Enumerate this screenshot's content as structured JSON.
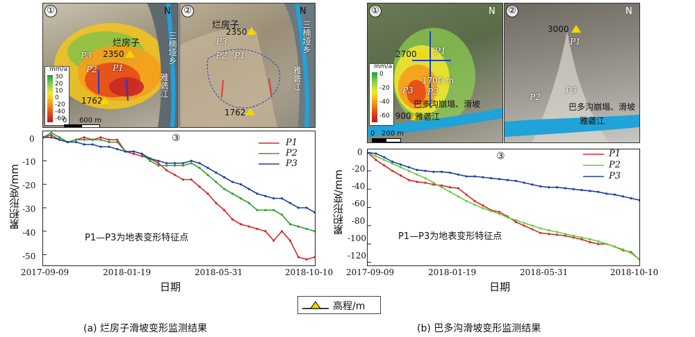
{
  "left": {
    "panel1": {
      "num": "①",
      "labels": {
        "name": "烂房子",
        "elev": "2350",
        "elev_low": "1762",
        "p1": "P1",
        "p2": "P2",
        "p3": "P3",
        "n": "N",
        "river": "雅砻江",
        "town": "三楠垭乡"
      },
      "colorbar": {
        "unit": "mm/a",
        "ticks": [
          "30",
          "20",
          "10",
          "0",
          "-20",
          "-40",
          "-60"
        ]
      },
      "scale": {
        "zero": "0",
        "len": "600 m"
      }
    },
    "panel2": {
      "num": "②",
      "labels": {
        "name": "烂房子",
        "elev": "2350",
        "elev_low": "1762",
        "p1": "P1",
        "p2": "P2",
        "p3": "P3",
        "n": "N",
        "river": "雅砻江",
        "town": "三楠垭乡"
      }
    },
    "chart_num": "③",
    "caption": "(a) 烂房子滑坡变形监测结果"
  },
  "right": {
    "panel1": {
      "num": "①",
      "labels": {
        "elev_top": "2700",
        "elev_mid": "1700 m",
        "elev_low": "1900",
        "p1": "P1",
        "p2": "P2",
        "p3": "P3",
        "n": "N",
        "river": "雅砻江",
        "collapse": "巴多沟崩塌、滑坡"
      },
      "colorbar": {
        "unit": "mm/a",
        "ticks": [
          "0",
          "-20",
          "-40",
          "-60"
        ]
      },
      "scale": {
        "zero": "0",
        "len": "200 m"
      }
    },
    "panel2": {
      "num": "②",
      "labels": {
        "elev": "3000",
        "p1": "P1",
        "p2": "P2",
        "p3": "P3",
        "n": "N",
        "river": "雅砻江",
        "collapse": "巴多沟崩塌、滑坡"
      }
    },
    "chart_num": "③",
    "caption": "(b) 巴多沟滑坡变形监测结果"
  },
  "legend_elev": "高程/m",
  "chart_data": [
    {
      "type": "line",
      "xlabel": "日期",
      "ylabel": "累积形变/mm",
      "xticks": [
        "2017-09-09",
        "2018-01-19",
        "2018-05-31",
        "2018-10-10"
      ],
      "yticks": [
        "0",
        "-10",
        "-20",
        "-30",
        "-40",
        "-50"
      ],
      "ylim": [
        -54,
        2
      ],
      "annotation": "P1—P3为地表变形特征点",
      "x": [
        0,
        12,
        24,
        36,
        48,
        60,
        72,
        84,
        96,
        108,
        120,
        132,
        144,
        156,
        168,
        180,
        192,
        204,
        216,
        228,
        240,
        252,
        264,
        276,
        288,
        300,
        312,
        324,
        336,
        348,
        360,
        372,
        384,
        396
      ],
      "x_dates": [
        "2017-09-09",
        "2017-09-21",
        "2017-10-03",
        "2017-10-15",
        "2017-10-27",
        "2017-11-08",
        "2017-11-20",
        "2017-12-02",
        "2017-12-14",
        "2017-12-26",
        "2018-01-07",
        "2018-01-19",
        "2018-01-31",
        "2018-02-12",
        "2018-02-24",
        "2018-03-08",
        "2018-03-20",
        "2018-04-01",
        "2018-04-13",
        "2018-04-25",
        "2018-05-07",
        "2018-05-19",
        "2018-05-31",
        "2018-06-12",
        "2018-06-24",
        "2018-07-06",
        "2018-07-18",
        "2018-07-30",
        "2018-08-11",
        "2018-08-23",
        "2018-09-04",
        "2018-09-16",
        "2018-09-28",
        "2018-10-10"
      ],
      "series": [
        {
          "name": "P1",
          "color": "#d62728",
          "values": [
            0,
            1,
            -1,
            -2,
            -1,
            0,
            -1,
            0,
            -1,
            -1,
            -6,
            -7,
            -8,
            -9,
            -11,
            -14,
            -16,
            -18,
            -18,
            -21,
            -24,
            -28,
            -31,
            -35,
            -37,
            -38,
            -39,
            -40,
            -44,
            -40,
            -44,
            -51,
            -52,
            -51
          ]
        },
        {
          "name": "P2",
          "color": "#2ca02c",
          "values": [
            0,
            2,
            0,
            -2,
            -1,
            -1,
            -1,
            -1,
            -2,
            -2,
            -6,
            -6,
            -7,
            -10,
            -12,
            -12,
            -12,
            -12,
            -11,
            -13,
            -16,
            -19,
            -22,
            -24,
            -26,
            -28,
            -31,
            -31,
            -31,
            -33,
            -37,
            -38,
            -39,
            -40
          ]
        },
        {
          "name": "P3",
          "color": "#1f3fa0",
          "values": [
            0,
            0,
            -1,
            -2,
            -2,
            -3,
            -3,
            -4,
            -4,
            -5,
            -6,
            -6,
            -7,
            -9,
            -10,
            -11,
            -11,
            -11,
            -10,
            -11,
            -13,
            -15,
            -17,
            -19,
            -20,
            -22,
            -24,
            -25,
            -26,
            -26,
            -28,
            -30,
            -30,
            -32
          ]
        }
      ]
    },
    {
      "type": "line",
      "xlabel": "日期",
      "ylabel": "累积形变/mm",
      "xticks": [
        "2017-09-09",
        "2018-01-19",
        "2018-05-31",
        "2018-10-10"
      ],
      "yticks": [
        "0",
        "-20",
        "-40",
        "-60",
        "-80",
        "-100",
        "-120"
      ],
      "ylim": [
        -122,
        2
      ],
      "annotation": "P1—P3为地表变形特征点",
      "x": [
        0,
        12,
        24,
        36,
        48,
        60,
        72,
        84,
        96,
        108,
        120,
        132,
        144,
        156,
        168,
        180,
        192,
        204,
        216,
        228,
        240,
        252,
        264,
        276,
        288,
        300,
        312,
        324,
        336,
        348,
        360,
        372,
        384,
        396
      ],
      "x_dates": [
        "2017-09-09",
        "2017-09-21",
        "2017-10-03",
        "2017-10-15",
        "2017-10-27",
        "2017-11-08",
        "2017-11-20",
        "2017-12-02",
        "2017-12-14",
        "2017-12-26",
        "2018-01-07",
        "2018-01-19",
        "2018-01-31",
        "2018-02-12",
        "2018-02-24",
        "2018-03-08",
        "2018-03-20",
        "2018-04-01",
        "2018-04-13",
        "2018-04-25",
        "2018-05-07",
        "2018-05-19",
        "2018-05-31",
        "2018-06-12",
        "2018-06-24",
        "2018-07-06",
        "2018-07-18",
        "2018-07-30",
        "2018-08-11",
        "2018-08-23",
        "2018-09-04",
        "2018-09-16",
        "2018-09-28",
        "2018-10-10"
      ],
      "series": [
        {
          "name": "P1",
          "color": "#d62728",
          "values": [
            0,
            -8,
            -14,
            -20,
            -25,
            -30,
            -32,
            -33,
            -35,
            -36,
            -38,
            -39,
            -46,
            -53,
            -58,
            -63,
            -65,
            -70,
            -76,
            -80,
            -84,
            -88,
            -89,
            -90,
            -91,
            -93,
            -95,
            -98,
            -100,
            -100,
            -103,
            -107,
            -109,
            -117
          ]
        },
        {
          "name": "P2",
          "color": "#5fcf3f",
          "values": [
            0,
            -4,
            -8,
            -12,
            -16,
            -20,
            -24,
            -28,
            -33,
            -38,
            -43,
            -48,
            -53,
            -57,
            -61,
            -64,
            -67,
            -71,
            -74,
            -77,
            -80,
            -83,
            -85,
            -87,
            -89,
            -91,
            -93,
            -95,
            -97,
            -100,
            -103,
            -106,
            -110,
            -117
          ]
        },
        {
          "name": "P3",
          "color": "#1f3fa0",
          "values": [
            0,
            -1,
            -5,
            -10,
            -13,
            -16,
            -19,
            -20,
            -21,
            -21,
            -22,
            -24,
            -26,
            -26,
            -27,
            -28,
            -29,
            -30,
            -31,
            -33,
            -35,
            -37,
            -38,
            -38,
            -39,
            -40,
            -41,
            -42,
            -43,
            -45,
            -46,
            -48,
            -50,
            -52
          ]
        }
      ]
    }
  ]
}
